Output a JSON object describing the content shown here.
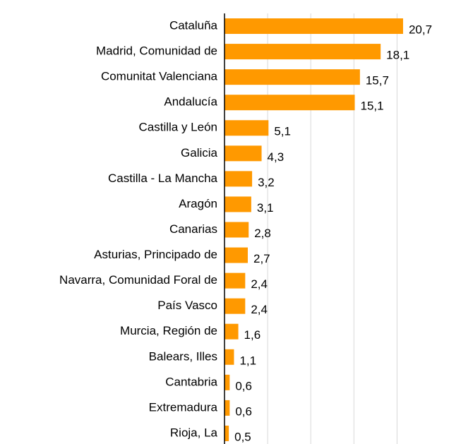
{
  "chart_data": {
    "type": "bar",
    "orientation": "horizontal",
    "categories": [
      "Cataluña",
      "Madrid, Comunidad de",
      "Comunitat Valenciana",
      "Andalucía",
      "Castilla y León",
      "Galicia",
      "Castilla - La Mancha",
      "Aragón",
      "Canarias",
      "Asturias, Principado de",
      "Navarra, Comunidad Foral de",
      "País Vasco",
      "Murcia, Región de",
      "Balears, Illes",
      "Cantabria",
      "Extremadura",
      "Rioja, La"
    ],
    "values": [
      20.7,
      18.1,
      15.7,
      15.1,
      5.1,
      4.3,
      3.2,
      3.1,
      2.8,
      2.7,
      2.4,
      2.4,
      1.6,
      1.1,
      0.6,
      0.6,
      0.5
    ],
    "value_labels": [
      "20,7",
      "18,1",
      "15,7",
      "15,1",
      "5,1",
      "4,3",
      "3,2",
      "3,1",
      "2,8",
      "2,7",
      "2,4",
      "2,4",
      "1,6",
      "1,1",
      "0,6",
      "0,6",
      "0,5"
    ],
    "color": "#ff9900",
    "xlim": [
      0,
      25
    ],
    "xticks": [
      5,
      10,
      15,
      20
    ],
    "grid": true
  }
}
